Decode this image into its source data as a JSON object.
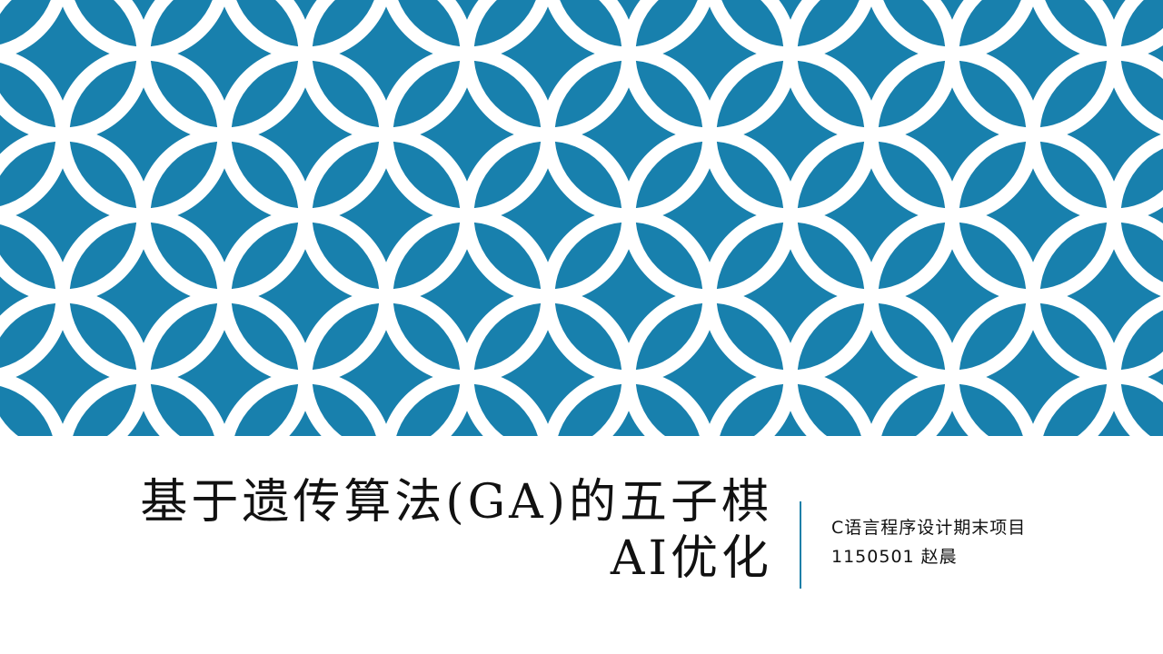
{
  "slide": {
    "title_line1": "基于遗传算法(GA)的五子棋",
    "title_line2": "AI优化",
    "subtitle_line1": "C语言程序设计期末项目",
    "subtitle_line2": "1150501 赵晨"
  },
  "colors": {
    "pattern_background": "#1880ad",
    "pattern_ring": "#ffffff",
    "divider": "#1a7fa8",
    "text": "#111111"
  },
  "pattern": {
    "type": "interlocking-circles"
  }
}
